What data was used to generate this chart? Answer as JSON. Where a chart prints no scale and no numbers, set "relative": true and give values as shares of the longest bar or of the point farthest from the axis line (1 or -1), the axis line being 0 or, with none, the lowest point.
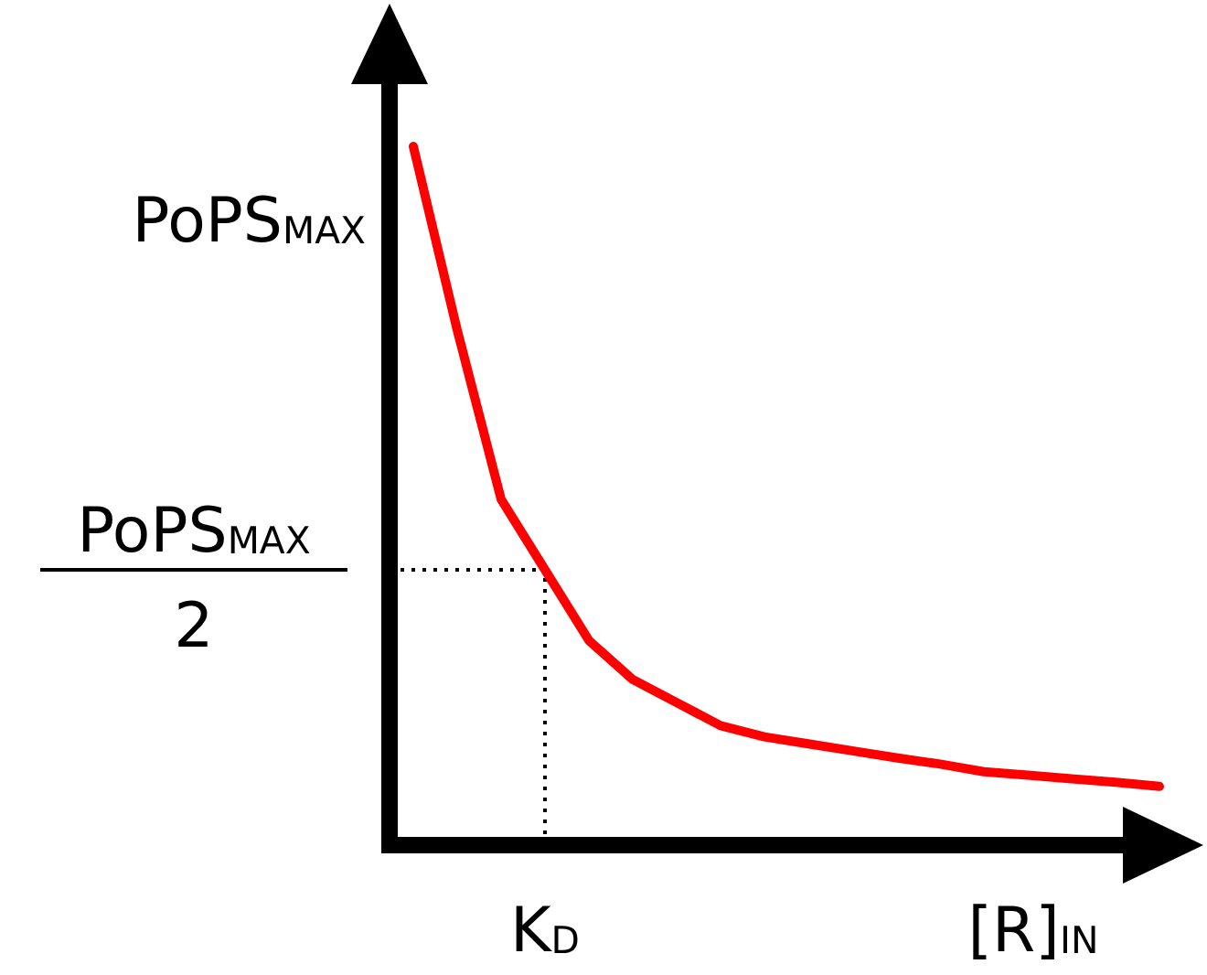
{
  "chart_data": {
    "type": "line",
    "relative": true,
    "xlabel": "[R]$_{IN}$",
    "categories": [
      null,
      null,
      null,
      null,
      null,
      null,
      null,
      null,
      null,
      null,
      null,
      null,
      null,
      null,
      null,
      null,
      null,
      null
    ],
    "series": [
      {
        "color": "#ff0000",
        "values": [
          1,
          0.737,
          0.495,
          0.394,
          0.293,
          0.237,
          0.204,
          0.171,
          0.155,
          0.145,
          0.135,
          0.125,
          0.116,
          0.105,
          0.1,
          0.095,
          0.09,
          0.084
        ]
      }
    ],
    "annotations": [
      "PoPS$_{MAX}$",
      "PoPS$_{MAX}$",
      "2",
      "K$_{D}$"
    ],
    "ref_lines": [
      {
        "axis": "y",
        "value": 0.394,
        "color": "#000000",
        "line_style": "dotted"
      }
    ],
    "marker": "none",
    "line_style": "solid"
  }
}
